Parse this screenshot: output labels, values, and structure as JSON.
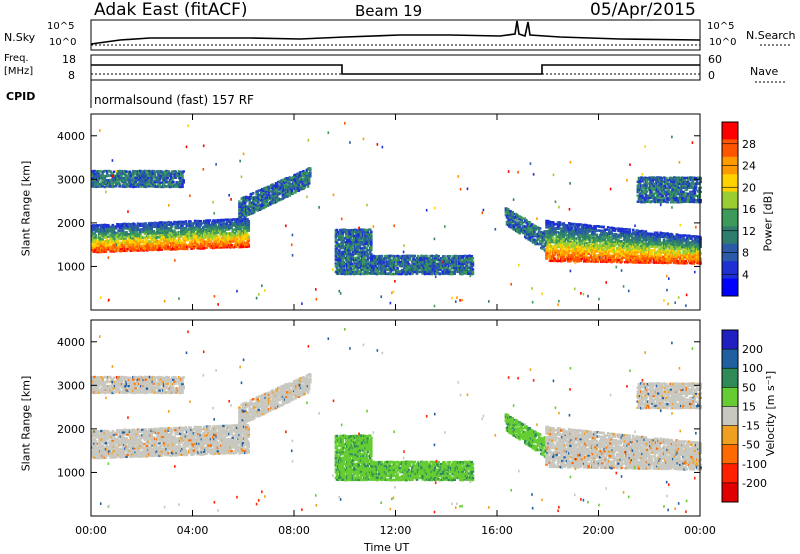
{
  "header": {
    "station": "Adak East (fitACF)",
    "beam": "Beam 19",
    "date": "05/Apr/2015"
  },
  "top_panels": {
    "nsky_label": "N.Sky",
    "nsky_ticks": [
      "10^5",
      "10^0"
    ],
    "nsky_right_ticks": [
      "10^5",
      "10^0"
    ],
    "nsearch_label": "N.Search",
    "freq_label": "Freq.",
    "freq_unit": "[MHz]",
    "freq_ticks": [
      "18",
      "8"
    ],
    "nave_ticks": [
      "60",
      "0"
    ],
    "nave_label": "Nave",
    "cpid_label": "CPID",
    "cpid_text": "normalsound (fast) 157 RF"
  },
  "chart_data": [
    {
      "type": "heatmap",
      "name": "power",
      "ylabel": "Slant Range [km]",
      "xlabel": "",
      "y_ticks": [
        1000,
        2000,
        3000,
        4000
      ],
      "ylim": [
        0,
        4500
      ],
      "xlim": [
        "00:00",
        "24:00"
      ],
      "colorbar_label": "Power [dB]",
      "colorbar_ticks": [
        "28",
        "24",
        "20",
        "16",
        "12",
        "8",
        "4"
      ],
      "colorbar_colors": [
        "#ff0000",
        "#ff5500",
        "#ff9900",
        "#ffd200",
        "#9acd32",
        "#3c9a5a",
        "#2e7d6f",
        "#2a5aa8",
        "#1e2fd4",
        "#0000ff"
      ]
    },
    {
      "type": "heatmap",
      "name": "velocity",
      "ylabel": "Slant Range [km]",
      "xlabel": "Time UT",
      "y_ticks": [
        1000,
        2000,
        3000,
        4000
      ],
      "ylim": [
        0,
        4500
      ],
      "x_ticks": [
        "00:00",
        "04:00",
        "08:00",
        "12:00",
        "16:00",
        "20:00",
        "00:00"
      ],
      "colorbar_label": "Velocity [m s⁻¹]",
      "colorbar_ticks": [
        "200",
        "100",
        "50",
        "15",
        "-15",
        "-50",
        "-100",
        "-200"
      ],
      "colorbar_colors": [
        "#2020c0",
        "#2060a0",
        "#2e8b57",
        "#66cc33",
        "#c8c8c0",
        "#f0a020",
        "#ff6a00",
        "#ff2000",
        "#e00000"
      ]
    }
  ],
  "colors": {
    "power_high": "#ff0000",
    "power_low": "#0000ff",
    "ground_scatter": "#b4b4b4",
    "velocity_green": "#66cc33"
  }
}
